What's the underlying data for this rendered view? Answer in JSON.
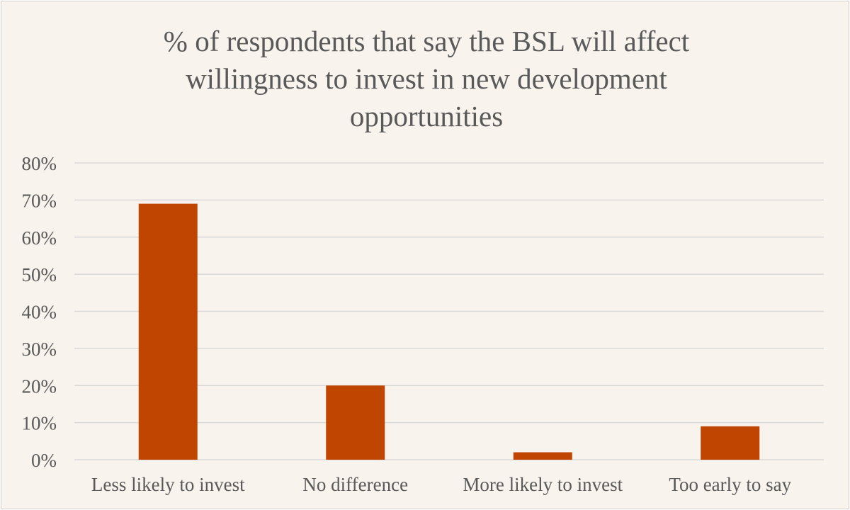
{
  "chart_data": {
    "type": "bar",
    "title": "% of respondents that say the BSL will affect willingness to invest in new development opportunities",
    "categories": [
      "Less likely to invest",
      "No difference",
      "More likely to invest",
      "Too early to say"
    ],
    "values": [
      69,
      20,
      2,
      9
    ],
    "ylim": [
      0,
      80
    ],
    "yticks": [
      0,
      10,
      20,
      30,
      40,
      50,
      60,
      70,
      80
    ],
    "ytick_suffix": "%",
    "xlabel": "",
    "ylabel": "",
    "grid": true,
    "legend": "none",
    "bar_color": "#c04500",
    "grid_color": "#d9d9d9",
    "text_color": "#595959",
    "background": "#f8f3ed"
  }
}
